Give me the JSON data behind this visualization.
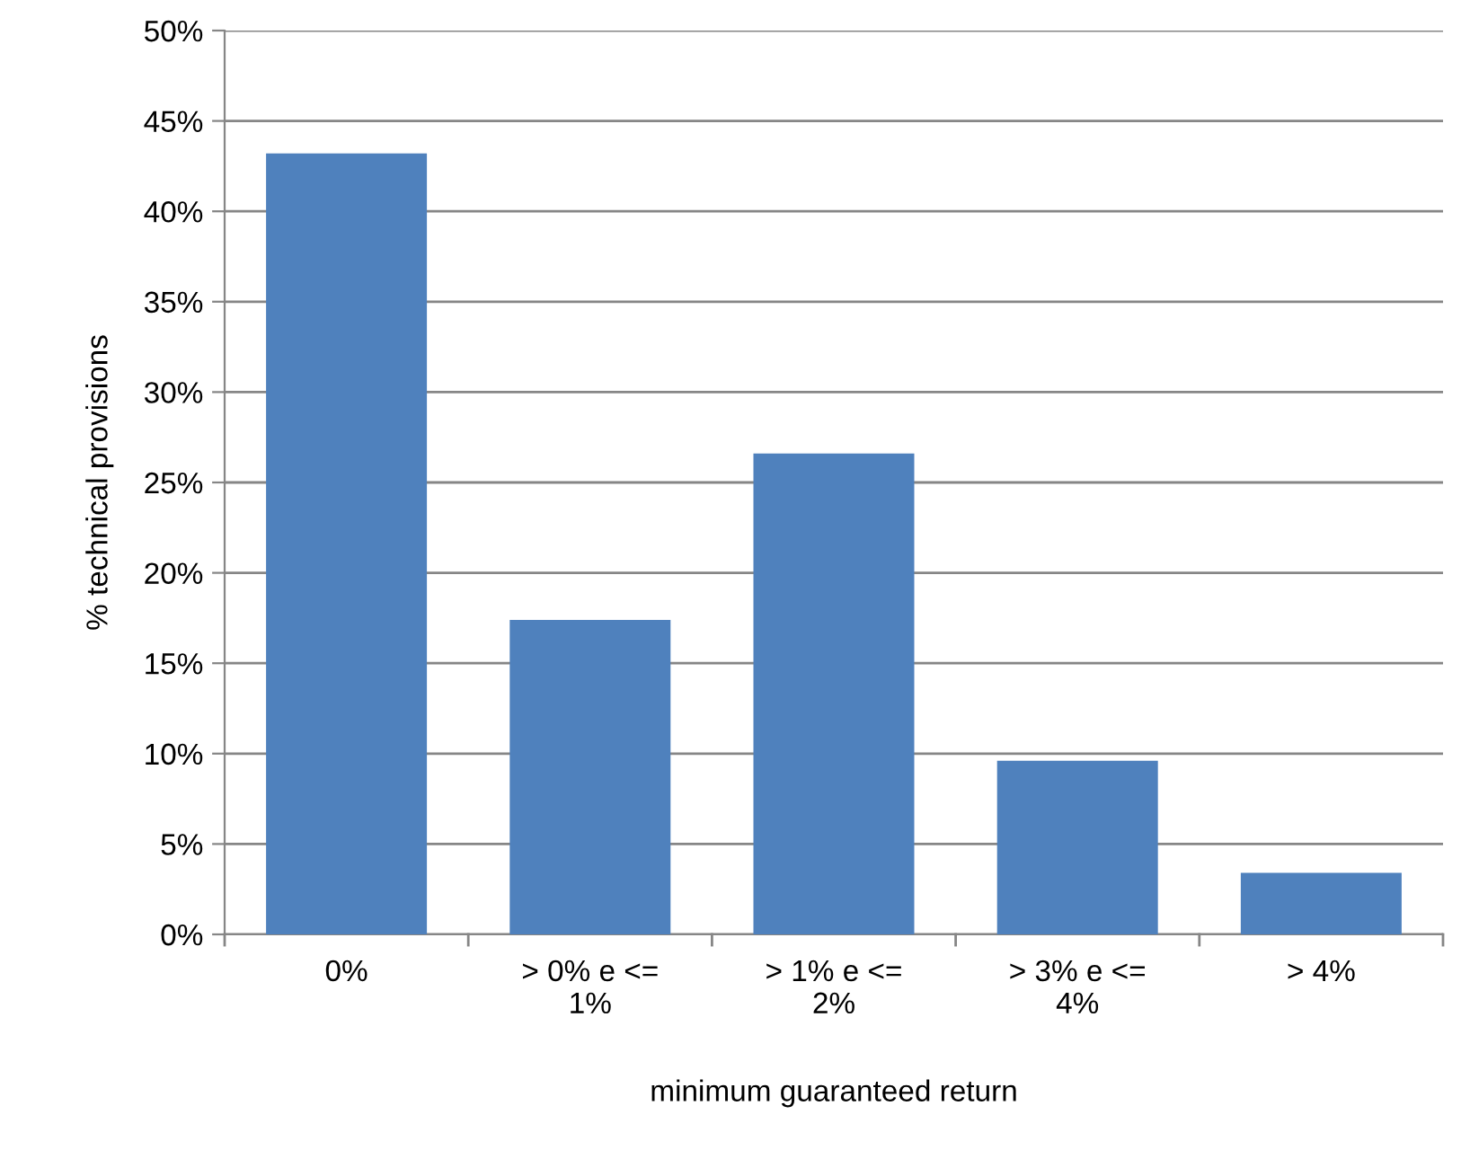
{
  "chart_data": {
    "type": "bar",
    "xlabel": "minimum guaranteed return",
    "ylabel": "% technical provisions",
    "categories": [
      "0%",
      "> 0% e <=\n1%",
      "> 1% e <=\n2%",
      "> 3% e <=\n4%",
      "> 4%"
    ],
    "values": [
      43.2,
      17.4,
      26.6,
      9.6,
      3.4
    ],
    "color": "#4f81bd",
    "ylim": [
      0,
      50
    ],
    "yticks": [
      {
        "value": 0,
        "label": "0%"
      },
      {
        "value": 5,
        "label": "5%"
      },
      {
        "value": 10,
        "label": "10%"
      },
      {
        "value": 15,
        "label": "15%"
      },
      {
        "value": 20,
        "label": "20%"
      },
      {
        "value": 25,
        "label": "25%"
      },
      {
        "value": 30,
        "label": "30%"
      },
      {
        "value": 35,
        "label": "35%"
      },
      {
        "value": 40,
        "label": "40%"
      },
      {
        "value": 45,
        "label": "45%"
      },
      {
        "value": 50,
        "label": "50%"
      }
    ],
    "grid": "y"
  }
}
